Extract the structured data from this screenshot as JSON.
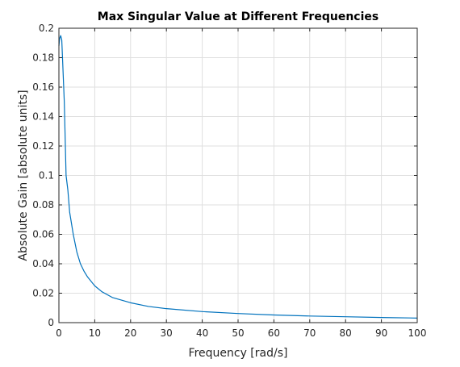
{
  "chart_data": {
    "type": "line",
    "title": "Max Singular Value at Different Frequencies",
    "xlabel": "Frequency [rad/s]",
    "ylabel": "Absolute Gain [absolute units]",
    "xlim": [
      0,
      100
    ],
    "ylim": [
      0,
      0.2
    ],
    "x_ticks": [
      "0",
      "10",
      "20",
      "30",
      "40",
      "50",
      "60",
      "70",
      "80",
      "90",
      "100"
    ],
    "y_ticks": [
      "0",
      "0.02",
      "0.04",
      "0.06",
      "0.08",
      "0.1",
      "0.12",
      "0.14",
      "0.16",
      "0.18",
      "0.2"
    ],
    "grid": true,
    "line_color": "#0072BD",
    "series": [
      {
        "x": [
          0,
          0.2,
          0.5,
          0.8,
          1,
          1.5,
          2,
          2.5,
          3,
          4,
          5,
          6,
          7,
          8,
          10,
          12,
          15,
          20,
          25,
          30,
          40,
          50,
          60,
          70,
          80,
          90,
          100
        ],
        "values": [
          0.188,
          0.193,
          0.195,
          0.192,
          0.18,
          0.15,
          0.1,
          0.09,
          0.075,
          0.06,
          0.048,
          0.04,
          0.035,
          0.031,
          0.025,
          0.021,
          0.017,
          0.0135,
          0.011,
          0.0095,
          0.0075,
          0.0062,
          0.0052,
          0.0045,
          0.004,
          0.0035,
          0.0031
        ]
      }
    ]
  }
}
